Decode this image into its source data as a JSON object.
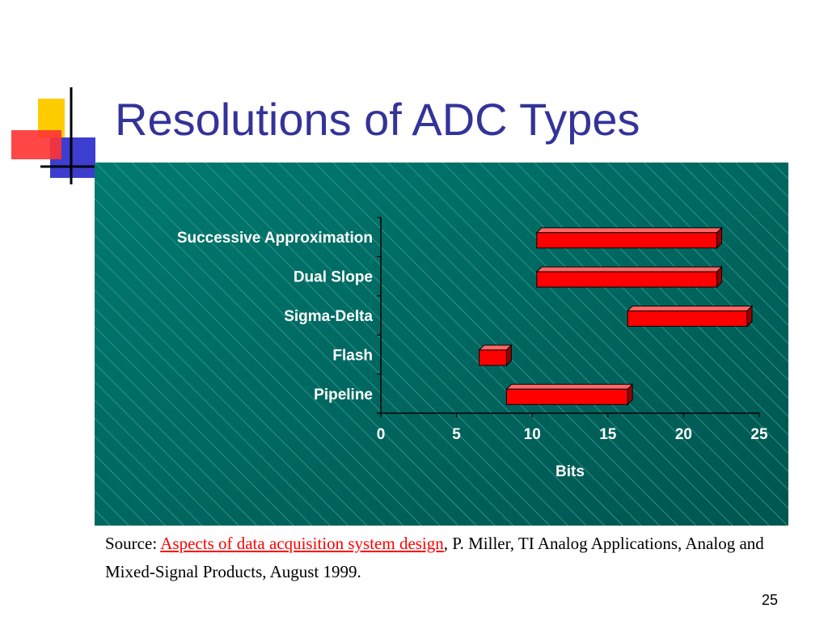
{
  "slide": {
    "title": "Resolutions of ADC Types",
    "page_number": "25"
  },
  "source": {
    "prefix": "Source: ",
    "link_text": "Aspects of data acquisition system design",
    "suffix": ", P. Miller, TI Analog Applications, Analog and Mixed-Signal Products, August 1999."
  },
  "colors": {
    "title": "#333399",
    "chart_background": "#006b63",
    "bar_fill": "#ff0000",
    "bar_top": "#ff6666",
    "bar_side": "#990000",
    "link": "#ff0000"
  },
  "chart_data": {
    "type": "bar",
    "orientation": "horizontal-floating",
    "categories": [
      "Successive Approximation",
      "Dual Slope",
      "Sigma-Delta",
      "Flash",
      "Pipeline"
    ],
    "series": [
      {
        "values": [
          [
            10.3,
            22.2
          ],
          [
            10.3,
            22.2
          ],
          [
            16.3,
            24.2
          ],
          [
            6.5,
            8.3
          ],
          [
            8.3,
            16.3
          ]
        ]
      }
    ],
    "xlabel": "Bits",
    "ylabel": "",
    "xlim": [
      0,
      25
    ],
    "xticks": [
      "0",
      "5",
      "10",
      "15",
      "20",
      "25"
    ],
    "grid": false,
    "legend": "none"
  }
}
